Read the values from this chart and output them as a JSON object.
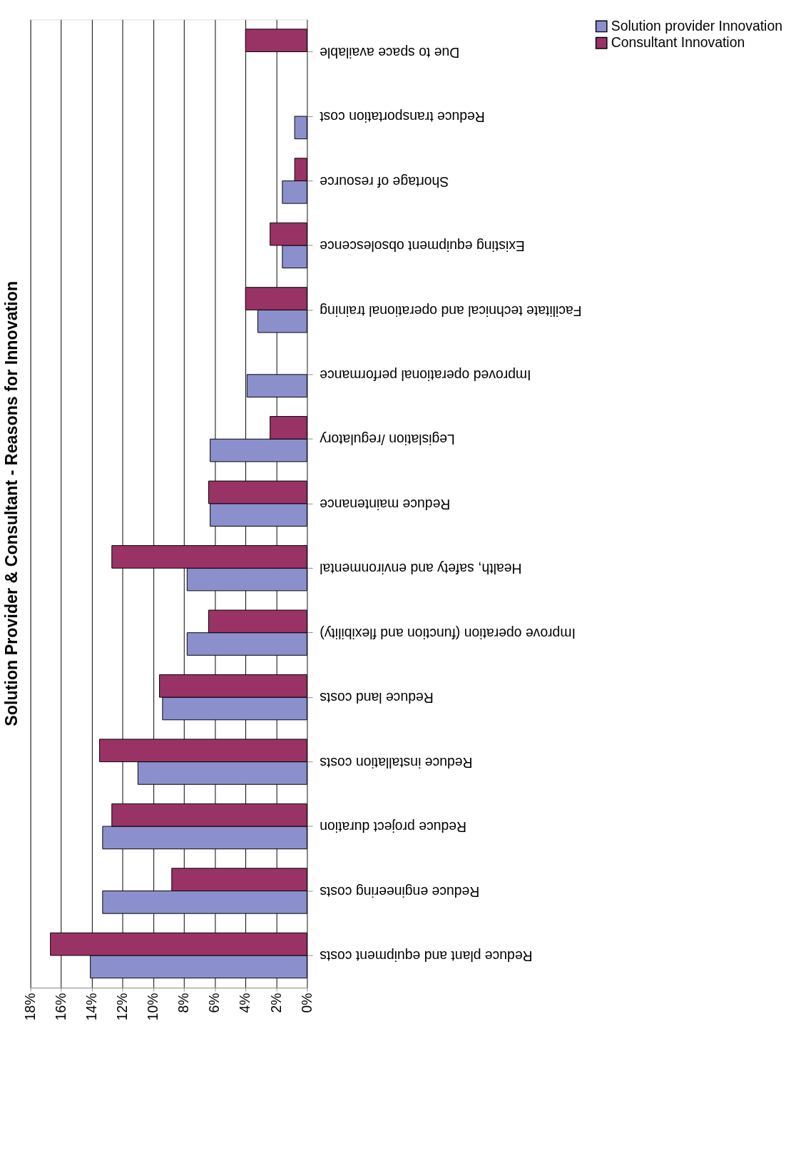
{
  "chart_data": {
    "type": "bar",
    "orientation": "horizontal",
    "title": "Solution Provider & Consultant - Reasons for Innovation",
    "categories": [
      "Due to space available",
      "Reduce transportation cost",
      "Shortage of resource",
      "Existing equipment obsolescence",
      "Facilitate technical and operational training",
      "Improved operational performance",
      "Legislation /regulatory",
      "Reduce maintenance",
      "Health, safety and environmental",
      "Improve operation (function and flexibility)",
      "Reduce land costs",
      "Reduce installation costs",
      "Reduce project duration",
      "Reduce engineering costs",
      "Reduce plant and equipment costs"
    ],
    "series": [
      {
        "name": "Solution provider Innovation",
        "color": "#8b8fcc",
        "values": [
          null,
          0.8,
          1.6,
          1.6,
          3.2,
          3.9,
          6.3,
          6.3,
          7.8,
          7.8,
          9.4,
          11.0,
          13.3,
          13.3,
          14.1
        ]
      },
      {
        "name": "Consultant Innovation",
        "color": "#993366",
        "values": [
          4.0,
          null,
          0.8,
          2.4,
          4.0,
          null,
          2.4,
          6.4,
          12.7,
          6.4,
          9.6,
          13.5,
          12.7,
          8.8,
          16.7
        ]
      }
    ],
    "xlim": [
      18,
      0
    ],
    "xticks": [
      {
        "value": 18,
        "label": "18%"
      },
      {
        "value": 16,
        "label": "16%"
      },
      {
        "value": 14,
        "label": "14%"
      },
      {
        "value": 12,
        "label": "12%"
      },
      {
        "value": 10,
        "label": "10%"
      },
      {
        "value": 8,
        "label": "8%"
      },
      {
        "value": 6,
        "label": "6%"
      },
      {
        "value": 4,
        "label": "4%"
      },
      {
        "value": 2,
        "label": "2%"
      },
      {
        "value": 0,
        "label": "0%"
      }
    ],
    "grid": "x",
    "legend": "right"
  }
}
